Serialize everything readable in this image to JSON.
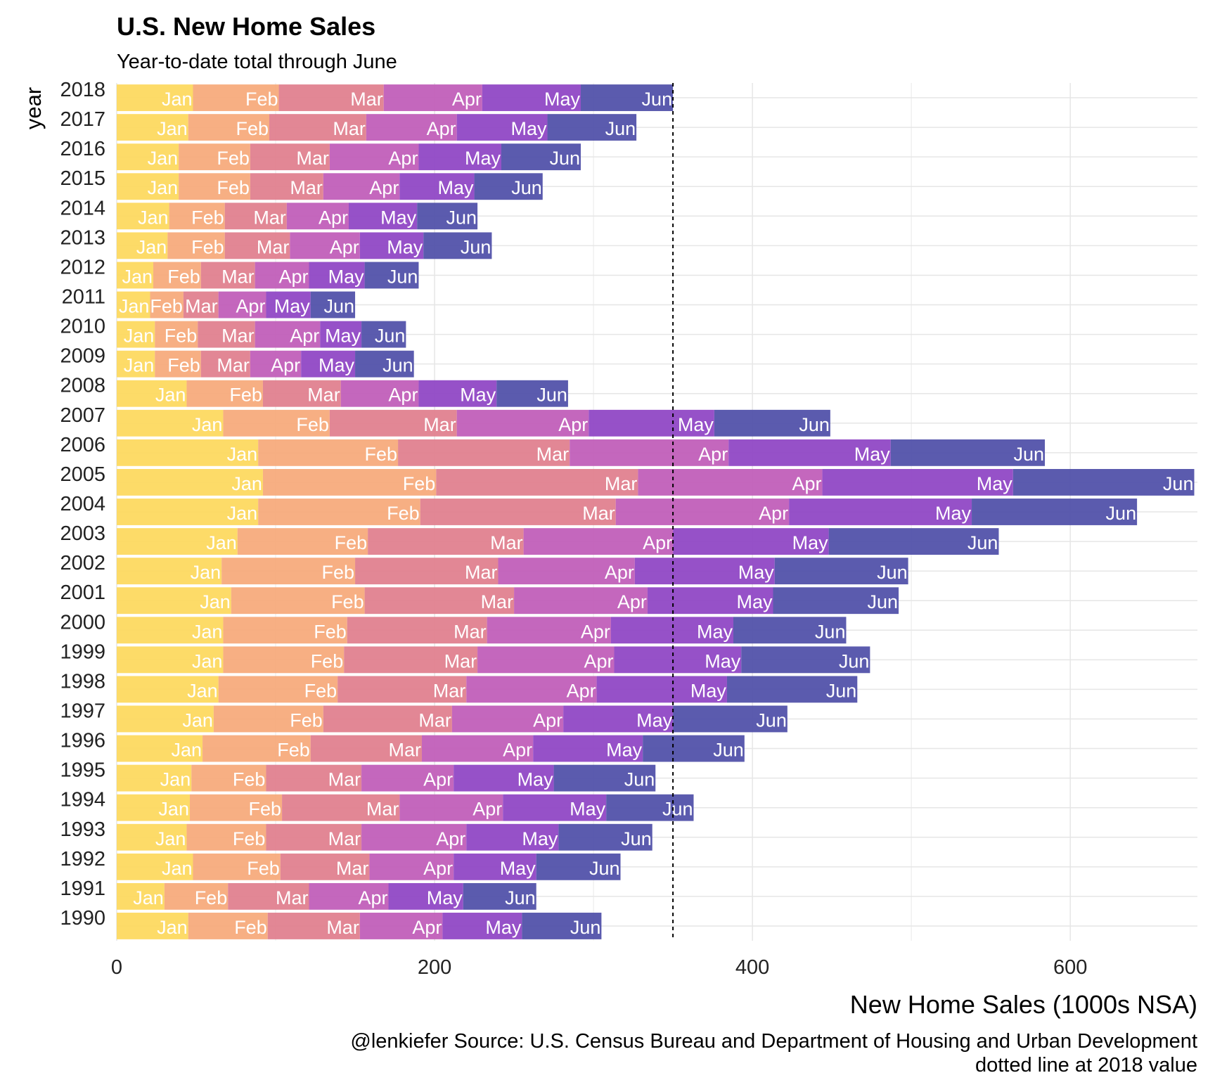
{
  "title": "U.S. New Home Sales",
  "subtitle": "Year-to-date total through June",
  "caption_line1": "@lenkiefer Source: U.S. Census Bureau and Department of Housing and Urban Development",
  "caption_line2": "dotted line at 2018 value",
  "chart_data": {
    "type": "bar",
    "orientation": "horizontal",
    "stacked": true,
    "xlabel": "New Home Sales (1000s NSA)",
    "ylabel": "year",
    "xlim": [
      0,
      680
    ],
    "xticks": [
      0,
      200,
      400,
      600
    ],
    "grid": true,
    "reference_line": {
      "value": 350,
      "style": "dotted"
    },
    "months": [
      "Jan",
      "Feb",
      "Mar",
      "Apr",
      "May",
      "Jun"
    ],
    "colors": [
      "#fdd85d",
      "#f6a97a",
      "#e07e8d",
      "#bf5bb8",
      "#8e44c4",
      "#4f4fa8"
    ],
    "categories": [
      "2018",
      "2017",
      "2016",
      "2015",
      "2014",
      "2013",
      "2012",
      "2011",
      "2010",
      "2009",
      "2008",
      "2007",
      "2006",
      "2005",
      "2004",
      "2003",
      "2002",
      "2001",
      "2000",
      "1999",
      "1998",
      "1997",
      "1996",
      "1995",
      "1994",
      "1993",
      "1992",
      "1991",
      "1990"
    ],
    "values": [
      [
        48,
        54,
        66,
        62,
        62,
        58
      ],
      [
        45,
        51,
        61,
        57,
        57,
        56
      ],
      [
        39,
        45,
        50,
        56,
        52,
        50
      ],
      [
        39,
        45,
        46,
        48,
        47,
        43
      ],
      [
        33,
        35,
        39,
        39,
        43,
        38
      ],
      [
        32,
        36,
        41,
        44,
        40,
        43
      ],
      [
        23,
        30,
        34,
        34,
        35,
        34
      ],
      [
        21,
        21,
        22,
        30,
        28,
        28
      ],
      [
        24,
        27,
        36,
        41,
        26,
        28
      ],
      [
        24,
        29,
        31,
        32,
        34,
        37
      ],
      [
        44,
        48,
        49,
        49,
        49,
        45
      ],
      [
        67,
        67,
        80,
        83,
        79,
        73
      ],
      [
        89,
        88,
        108,
        100,
        102,
        97
      ],
      [
        92,
        109,
        127,
        116,
        120,
        114
      ],
      [
        89,
        102,
        123,
        109,
        115,
        104
      ],
      [
        76,
        82,
        98,
        94,
        98,
        107
      ],
      [
        66,
        84,
        90,
        86,
        88,
        84
      ],
      [
        72,
        84,
        94,
        84,
        79,
        79
      ],
      [
        67,
        78,
        88,
        78,
        77,
        71
      ],
      [
        67,
        76,
        84,
        86,
        80,
        81
      ],
      [
        64,
        75,
        81,
        82,
        82,
        82
      ],
      [
        61,
        69,
        81,
        70,
        69,
        72
      ],
      [
        54,
        68,
        70,
        70,
        69,
        64
      ],
      [
        47,
        47,
        60,
        58,
        63,
        64
      ],
      [
        46,
        58,
        74,
        65,
        65,
        55
      ],
      [
        44,
        50,
        60,
        66,
        58,
        59
      ],
      [
        48,
        55,
        56,
        53,
        52,
        53
      ],
      [
        30,
        40,
        51,
        50,
        47,
        46
      ],
      [
        45,
        50,
        58,
        52,
        50,
        50
      ]
    ]
  }
}
